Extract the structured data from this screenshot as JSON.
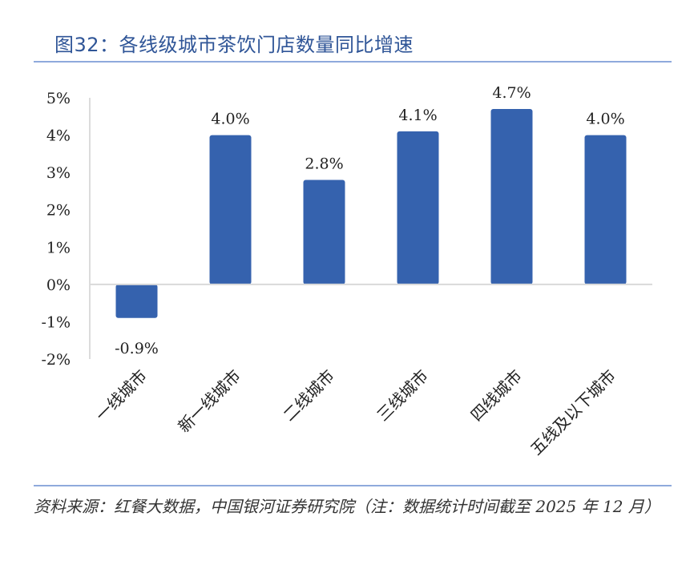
{
  "title": "图32：各线级城市茶饮门店数量同比增速",
  "source": "资料来源：红餐大数据，中国银河证券研究院（注：数据统计时间截至 2025 年 12 月）",
  "colors": {
    "bar": "#3562ae",
    "accent": "#2f5597",
    "rule": "#8faadc",
    "text": "#222222"
  },
  "chart_data": {
    "type": "bar",
    "title": "各线级城市茶饮门店数量同比增速",
    "categories": [
      "一线城市",
      "新一线城市",
      "二线城市",
      "三线城市",
      "四线城市",
      "五线及以下城市"
    ],
    "values": [
      -0.9,
      4.0,
      2.8,
      4.1,
      4.7,
      4.0
    ],
    "data_labels": [
      "-0.9%",
      "4.0%",
      "2.8%",
      "4.1%",
      "4.7%",
      "4.0%"
    ],
    "yticks": [
      -2,
      -1,
      0,
      1,
      2,
      3,
      4,
      5
    ],
    "ytick_labels": [
      "-2%",
      "-1%",
      "0%",
      "1%",
      "2%",
      "3%",
      "4%",
      "5%"
    ],
    "ylim": [
      -2,
      5
    ],
    "xlabel": "",
    "ylabel": "",
    "grid": false,
    "legend": "none"
  }
}
